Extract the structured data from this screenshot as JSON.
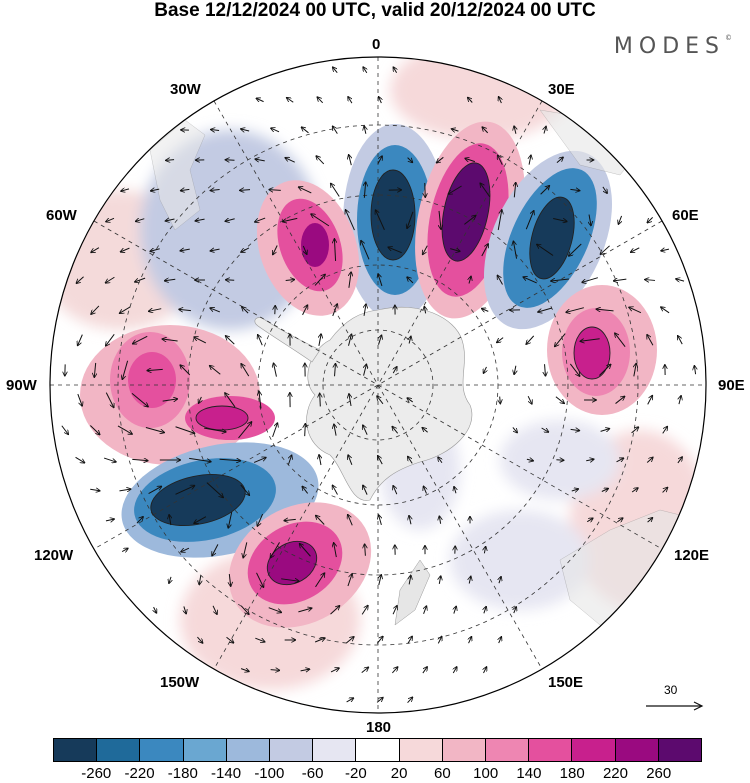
{
  "title": "Base 12/12/2024 00 UTC, valid 20/12/2024 00 UTC",
  "brand": "MODES",
  "brand_mark": "©",
  "longitude_labels": {
    "lon_0": "0",
    "lon_30e": "30E",
    "lon_60e": "60E",
    "lon_90e": "90E",
    "lon_120e": "120E",
    "lon_150e": "150E",
    "lon_180": "180",
    "lon_150w": "150W",
    "lon_120w": "120W",
    "lon_90w": "90W",
    "lon_60w": "60W",
    "lon_30w": "30W"
  },
  "reference_vector": {
    "label": "30"
  },
  "colorbar": {
    "colors": [
      "#163a5a",
      "#1f6a9a",
      "#3b88bf",
      "#6aa7d1",
      "#9db9dc",
      "#c3cbe3",
      "#e6e6f2",
      "#ffffff",
      "#f6d9da",
      "#f2b6c5",
      "#ee86b2",
      "#e4509e",
      "#c8208d",
      "#9a0a80",
      "#5c0a6e"
    ],
    "labels": [
      "-260",
      "-220",
      "-180",
      "-140",
      "-100",
      "-60",
      "-20",
      "20",
      "60",
      "100",
      "140",
      "180",
      "220",
      "260"
    ]
  },
  "anomaly_centres": [
    {
      "name": "neg-0",
      "color": "#163a5a",
      "sign": "negative"
    },
    {
      "name": "pos-20e",
      "color": "#5c0a6e",
      "sign": "positive"
    },
    {
      "name": "neg-45e",
      "color": "#163a5a",
      "sign": "negative"
    },
    {
      "name": "pos-35w",
      "color": "#9a0a80",
      "sign": "positive"
    },
    {
      "name": "pos-80e",
      "color": "#c8208d",
      "sign": "positive"
    },
    {
      "name": "pos-95w",
      "color": "#c8208d",
      "sign": "positive"
    },
    {
      "name": "neg-110w",
      "color": "#163a5a",
      "sign": "negative"
    },
    {
      "name": "pos-150w",
      "color": "#9a0a80",
      "sign": "positive"
    }
  ]
}
